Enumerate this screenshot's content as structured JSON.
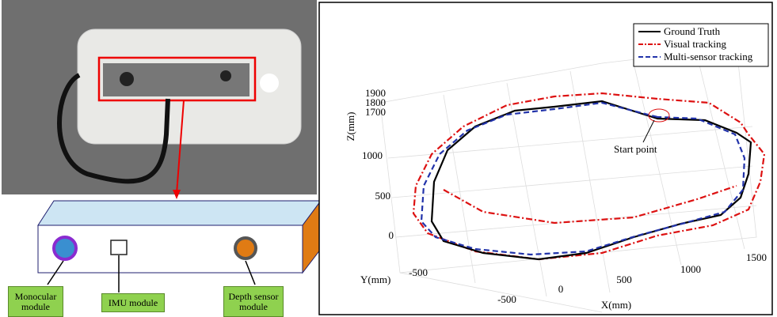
{
  "left": {
    "labels": [
      "Monocular module",
      "IMU module",
      "Depth sensor module"
    ]
  },
  "right": {
    "legend": [
      "Ground Truth",
      "Visual tracking",
      "Multi-sensor tracking"
    ],
    "annotation": "Start point",
    "z_label": "Z(mm)",
    "z_ticks": [
      "1900",
      "1800",
      "1700",
      "1000",
      "500",
      "0",
      "-500"
    ],
    "y_label": "Y(mm)",
    "x_label": "X(mm)",
    "x_ticks": [
      "-500",
      "0",
      "500",
      "1000",
      "1500"
    ]
  }
}
